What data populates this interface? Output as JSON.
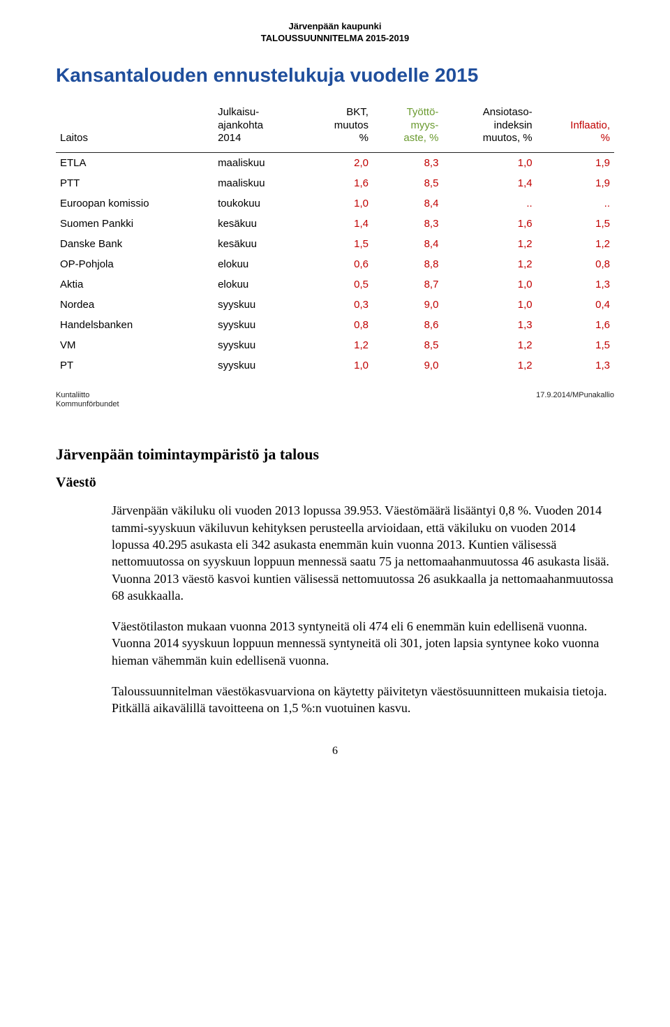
{
  "doc_header": {
    "line1": "Järvenpään kaupunki",
    "line2": "TALOUSSUUNNITELMA 2015-2019"
  },
  "slide": {
    "title": "Kansantalouden ennustelukuja vuodelle 2015",
    "title_color": "#1f4e9c",
    "header_colors": [
      "#000000",
      "#000000",
      "#000000",
      "#6a9a2f",
      "#000000",
      "#c00000"
    ],
    "columns": [
      "Laitos",
      "Julkaisu-\najankohta\n2014",
      "BKT,\nmuutos\n%",
      "Työttö-\nmyys-\naste, %",
      "Ansiotaso-\nindeksin\nmuutos, %",
      "Inflaatio,\n%"
    ],
    "row_colors": {
      "default_num": "#c00000",
      "nordea_green": "#6a9a2f",
      "vm_green": "#6a9a2f"
    },
    "rows": [
      {
        "laitos": "ETLA",
        "aika": "maaliskuu",
        "bkt": "2,0",
        "tyott": "8,3",
        "ansio": "1,0",
        "infl": "1,9"
      },
      {
        "laitos": "PTT",
        "aika": "maaliskuu",
        "bkt": "1,6",
        "tyott": "8,5",
        "ansio": "1,4",
        "infl": "1,9"
      },
      {
        "laitos": "Euroopan komissio",
        "aika": "toukokuu",
        "bkt": "1,0",
        "tyott": "8,4",
        "ansio": "..",
        "infl": ".."
      },
      {
        "laitos": "Suomen Pankki",
        "aika": "kesäkuu",
        "bkt": "1,4",
        "tyott": "8,3",
        "ansio": "1,6",
        "infl": "1,5"
      },
      {
        "laitos": "Danske Bank",
        "aika": "kesäkuu",
        "bkt": "1,5",
        "tyott": "8,4",
        "ansio": "1,2",
        "infl": "1,2"
      },
      {
        "laitos": "OP-Pohjola",
        "aika": "elokuu",
        "bkt": "0,6",
        "tyott": "8,8",
        "ansio": "1,2",
        "infl": "0,8"
      },
      {
        "laitos": "Aktia",
        "aika": "elokuu",
        "bkt": "0,5",
        "tyott": "8,7",
        "ansio": "1,0",
        "infl": "1,3"
      },
      {
        "laitos": "Nordea",
        "aika": "syyskuu",
        "bkt": "0,3",
        "tyott": "9,0",
        "ansio": "1,0",
        "infl": "0,4"
      },
      {
        "laitos": "Handelsbanken",
        "aika": "syyskuu",
        "bkt": "0,8",
        "tyott": "8,6",
        "ansio": "1,3",
        "infl": "1,6"
      },
      {
        "laitos": "VM",
        "aika": "syyskuu",
        "bkt": "1,2",
        "tyott": "8,5",
        "ansio": "1,2",
        "infl": "1,5"
      },
      {
        "laitos": "PT",
        "aika": "syyskuu",
        "bkt": "1,0",
        "tyott": "9,0",
        "ansio": "1,2",
        "infl": "1,3"
      }
    ],
    "footer_left_1": "Kuntaliitto",
    "footer_left_2": "Kommunförbundet",
    "footer_right": "17.9.2014/MPunakallio"
  },
  "section": {
    "heading": "Järvenpään toimintaympäristö ja talous",
    "sub": "Väestö",
    "paragraphs": [
      "Järvenpään väkiluku oli vuoden 2013 lopussa 39.953. Väestömäärä lisääntyi 0,8 %. Vuoden 2014 tammi-syyskuun väkiluvun kehityksen perusteella arvioidaan, että väkiluku on vuoden 2014 lopussa 40.295 asukasta eli 342 asukasta enemmän kuin vuonna 2013. Kuntien välisessä nettomuutossa on syyskuun loppuun mennessä saatu 75 ja nettomaahanmuutossa 46 asukasta lisää. Vuonna 2013 väestö kasvoi kuntien välisessä nettomuutossa 26 asukkaalla ja nettomaahanmuutossa 68 asukkaalla.",
      "Väestötilaston mukaan vuonna 2013 syntyneitä oli 474 eli 6 enemmän kuin edellisenä vuonna. Vuonna 2014 syyskuun loppuun mennessä syntyneitä oli 301, joten lapsia syntynee koko vuonna hieman vähemmän kuin edellisenä vuonna.",
      "Taloussuunnitelman väestökasvuarviona on käytetty päivitetyn väestösuunnitteen mukaisia tietoja. Pitkällä aikavälillä tavoitteena on 1,5 %:n vuotuinen kasvu."
    ]
  },
  "page_number": "6"
}
